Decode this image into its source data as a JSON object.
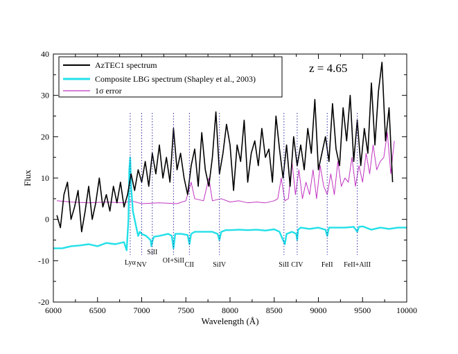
{
  "chart_data": {
    "type": "line",
    "title": "",
    "annotation": "z = 4.65",
    "xlabel": "Wavelength (Å)",
    "ylabel": "Flux",
    "xlim": [
      6000,
      10000
    ],
    "ylim": [
      -20,
      40
    ],
    "xticks": [
      6000,
      6500,
      7000,
      7500,
      8000,
      8500,
      9000,
      9500,
      10000
    ],
    "yticks": [
      -20,
      -10,
      0,
      10,
      20,
      30,
      40
    ],
    "legend": [
      {
        "label": "AzTEC1 spectrum",
        "color": "#000000"
      },
      {
        "label": "Composite LBG spectrum (Shapley et al., 2003)",
        "color": "#22e0e8"
      },
      {
        "label": "1σ error",
        "color": "#c032c0"
      }
    ],
    "lines": [
      {
        "label": "Lyα",
        "x": 6870
      },
      {
        "label": "NV",
        "x": 7000
      },
      {
        "label": "SiII",
        "x": 7120
      },
      {
        "label": "OI+SiII",
        "x": 7360
      },
      {
        "label": "CII",
        "x": 7540
      },
      {
        "label": "SiIV",
        "x": 7880
      },
      {
        "label": "SiII",
        "x": 8610
      },
      {
        "label": "CIV",
        "x": 8760
      },
      {
        "label": "FeII",
        "x": 9100
      },
      {
        "label": "FeII+AlII",
        "x": 9440
      }
    ],
    "series": [
      {
        "name": "AzTEC1 spectrum",
        "color": "#000000",
        "x": [
          6040,
          6080,
          6120,
          6160,
          6200,
          6240,
          6280,
          6320,
          6360,
          6400,
          6440,
          6480,
          6520,
          6560,
          6600,
          6640,
          6680,
          6720,
          6760,
          6800,
          6840,
          6880,
          6920,
          6960,
          7000,
          7040,
          7080,
          7120,
          7160,
          7200,
          7240,
          7280,
          7320,
          7360,
          7400,
          7440,
          7480,
          7520,
          7560,
          7600,
          7640,
          7680,
          7720,
          7760,
          7800,
          7840,
          7880,
          7920,
          7960,
          8000,
          8040,
          8080,
          8120,
          8160,
          8200,
          8240,
          8280,
          8320,
          8360,
          8400,
          8440,
          8480,
          8520,
          8560,
          8600,
          8640,
          8680,
          8720,
          8760,
          8800,
          8840,
          8880,
          8920,
          8960,
          9000,
          9040,
          9080,
          9120,
          9160,
          9200,
          9240,
          9280,
          9320,
          9360,
          9400,
          9440,
          9480,
          9520,
          9560,
          9600,
          9640,
          9680,
          9720,
          9760,
          9800,
          9840
        ],
        "y": [
          1,
          -2,
          6,
          9,
          0,
          3,
          7,
          -3,
          2,
          8,
          0,
          4,
          10,
          3,
          6,
          2,
          8,
          4,
          9,
          3,
          6,
          11,
          7,
          12,
          9,
          14,
          8,
          16,
          11,
          18,
          10,
          15,
          9,
          22,
          12,
          16,
          10,
          6,
          13,
          17,
          8,
          21,
          12,
          8,
          15,
          26,
          11,
          16,
          23,
          18,
          7,
          18,
          14,
          24,
          9,
          16,
          19,
          13,
          22,
          15,
          17,
          9,
          25,
          17,
          10,
          18,
          8,
          20,
          13,
          18,
          12,
          22,
          16,
          29,
          12,
          16,
          20,
          14,
          28,
          17,
          13,
          27,
          19,
          30,
          14,
          24,
          13,
          22,
          16,
          33,
          18,
          31,
          38,
          19,
          27,
          9
        ]
      },
      {
        "name": "Composite LBG spectrum (Shapley et al., 2003)",
        "color": "#22e0e8",
        "x": [
          6000,
          6100,
          6200,
          6300,
          6400,
          6500,
          6600,
          6700,
          6800,
          6830,
          6850,
          6860,
          6870,
          6880,
          6900,
          6940,
          6960,
          6980,
          7000,
          7050,
          7100,
          7110,
          7125,
          7140,
          7200,
          7300,
          7340,
          7360,
          7380,
          7450,
          7520,
          7540,
          7560,
          7600,
          7700,
          7800,
          7860,
          7880,
          7900,
          7950,
          8000,
          8100,
          8200,
          8300,
          8400,
          8500,
          8560,
          8600,
          8620,
          8640,
          8700,
          8750,
          8760,
          8770,
          8800,
          8900,
          9000,
          9080,
          9100,
          9120,
          9200,
          9300,
          9400,
          9440,
          9460,
          9500,
          9600,
          9700,
          9800,
          9900,
          10000
        ],
        "y": [
          -7,
          -7,
          -6.5,
          -6.3,
          -6,
          -6.5,
          -5.7,
          -6,
          -5.5,
          -7.5,
          0,
          12,
          15,
          8,
          2,
          -2,
          -4,
          -3,
          -3.5,
          -4,
          -5,
          -6.5,
          -5,
          -4.2,
          -4,
          -3.5,
          -4,
          -7,
          -3.5,
          -3.5,
          -3.8,
          -6,
          -3.5,
          -3,
          -3,
          -3,
          -3.5,
          -5,
          -3,
          -2.6,
          -2.6,
          -2.5,
          -2.6,
          -2.5,
          -2.7,
          -2.4,
          -3,
          -5,
          -6,
          -3.5,
          -3,
          -3.5,
          -5,
          -2.5,
          -2,
          -2.3,
          -2,
          -2.5,
          -4,
          -2,
          -2,
          -2,
          -1.8,
          -3,
          -1.8,
          -1.7,
          -2.5,
          -2,
          -2.3,
          -2,
          -2
        ]
      },
      {
        "name": "1σ error",
        "color": "#c032c0",
        "x": [
          6040,
          6200,
          6400,
          6600,
          6800,
          6880,
          7000,
          7200,
          7400,
          7500,
          7560,
          7600,
          7700,
          7760,
          7800,
          7900,
          8000,
          8100,
          8200,
          8300,
          8400,
          8500,
          8540,
          8580,
          8620,
          8660,
          8700,
          8740,
          8780,
          8820,
          8860,
          8900,
          8940,
          8980,
          9020,
          9060,
          9100,
          9140,
          9180,
          9220,
          9260,
          9300,
          9340,
          9380,
          9420,
          9460,
          9500,
          9540,
          9580,
          9620,
          9660,
          9700,
          9740,
          9780,
          9820,
          9860
        ],
        "y": [
          4.5,
          4.2,
          4.0,
          4.2,
          4.0,
          4.5,
          3.8,
          4.0,
          3.8,
          4.5,
          9,
          5,
          4.5,
          10,
          4.5,
          5,
          4.2,
          4.5,
          4,
          4.2,
          4,
          4.5,
          5,
          10,
          4.5,
          5,
          14,
          6,
          12,
          5,
          9,
          6,
          12,
          5,
          13,
          8,
          6,
          11,
          6,
          14,
          8,
          10,
          9,
          15,
          8,
          13,
          9,
          16,
          11,
          18,
          12,
          14,
          15,
          21,
          11,
          19
        ]
      }
    ]
  }
}
